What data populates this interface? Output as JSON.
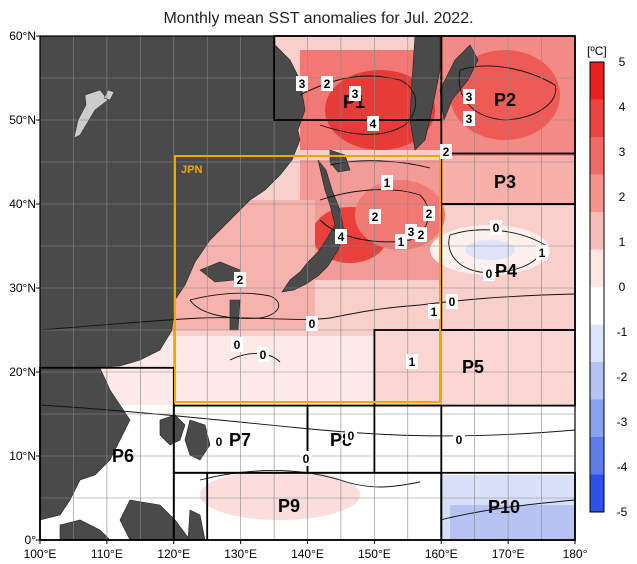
{
  "title": "Monthly mean SST anomalies for Jul. 2022.",
  "map": {
    "lon_range": [
      100,
      180
    ],
    "lat_range": [
      0,
      60
    ],
    "x_ticks": [
      "100°E",
      "110°E",
      "120°E",
      "130°E",
      "140°E",
      "150°E",
      "160°E",
      "170°E",
      "180°"
    ],
    "y_ticks": [
      "0°",
      "10°N",
      "20°N",
      "30°N",
      "40°N",
      "50°N",
      "60°N"
    ],
    "jpn_label": "JPN",
    "jpn_color": "#f0a800",
    "land_color": "#4a4a4a",
    "regions": [
      "P1",
      "P2",
      "P3",
      "P4",
      "P5",
      "P6",
      "P7",
      "P8",
      "P9",
      "P10"
    ],
    "contour_labels": [
      "3",
      "2",
      "3",
      "4",
      "3",
      "3",
      "2",
      "1",
      "2",
      "2",
      "3",
      "2",
      "1",
      "0",
      "1",
      "4",
      "0",
      "2",
      "0",
      "1",
      "0",
      "0",
      "0",
      "1",
      "0",
      "0",
      "0",
      "0"
    ]
  },
  "colorbar": {
    "unit": "[ºC]",
    "labels": [
      "5",
      "4",
      "3",
      "2",
      "1",
      "0",
      "-1",
      "-2",
      "-3",
      "-4",
      "-5"
    ],
    "colors": [
      "#e8201e",
      "#ee4440",
      "#f26a66",
      "#f6938f",
      "#f9bdb9",
      "#fde6e4",
      "#ffffff",
      "#dde4fb",
      "#b5c3f6",
      "#8a9ff0",
      "#5e7cec",
      "#2c52ea"
    ]
  }
}
